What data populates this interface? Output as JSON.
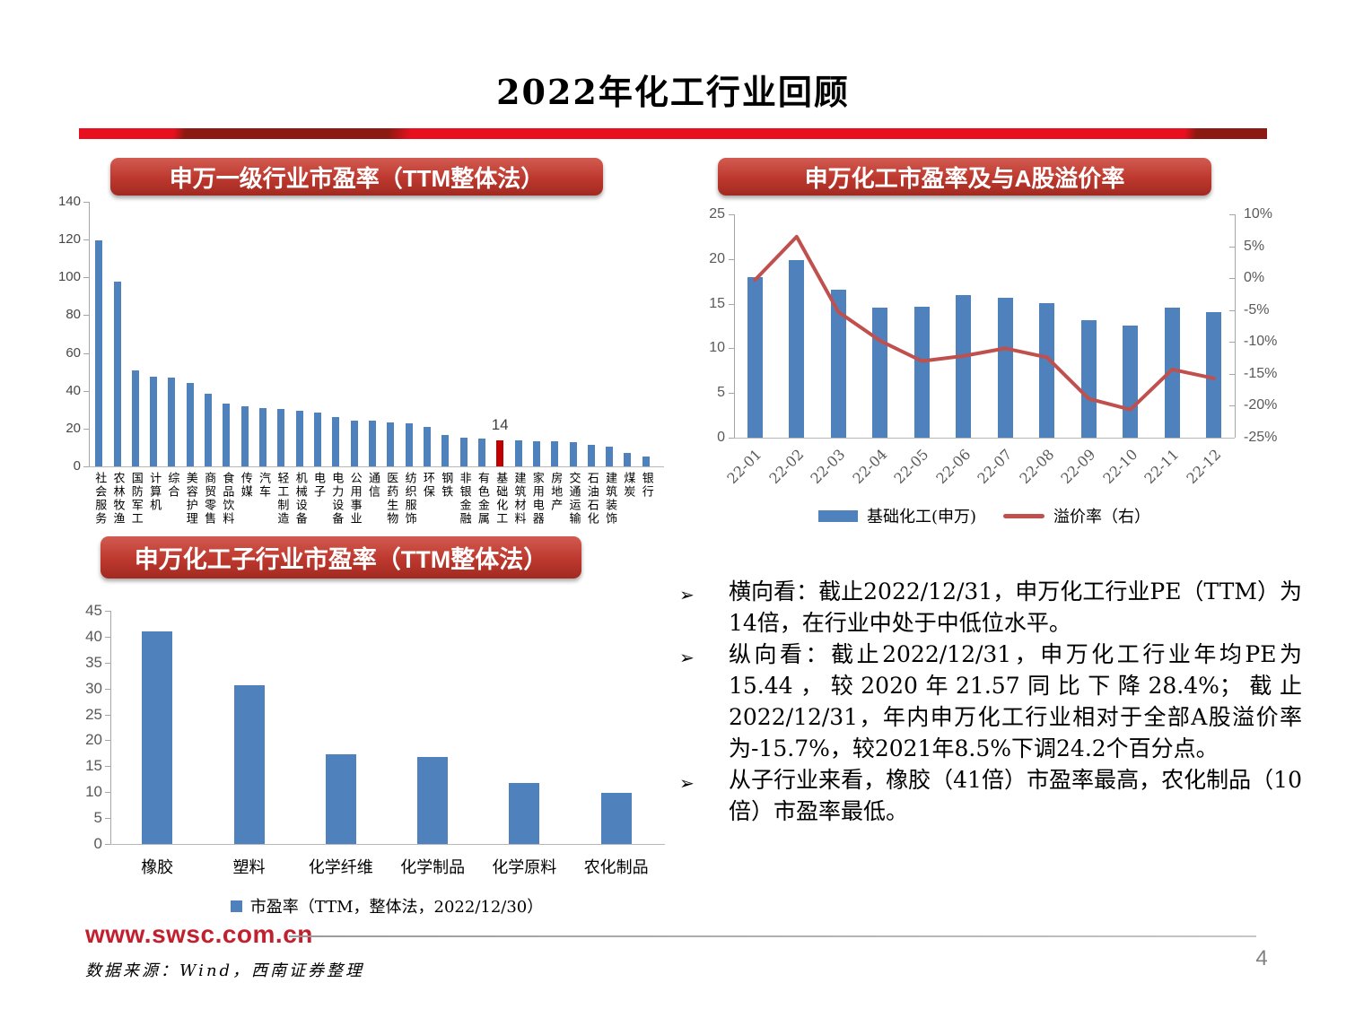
{
  "title": "2022年化工行业回顾",
  "colors": {
    "bar_blue": "#4F81BD",
    "bar_red": "#C00000",
    "line_red": "#C0504D",
    "banner_red": "#BD382E",
    "divider_red": "#E8101E",
    "divider_dark": "#8B1A12",
    "axis_gray": "#A6A6A6",
    "label_gray": "#595959",
    "link_red": "#C2202F"
  },
  "chart_data": [
    {
      "type": "bar",
      "title": "申万一级行业市盈率（TTM整体法）",
      "categories": [
        "社会服务",
        "农林牧渔",
        "国防军工",
        "计算机",
        "综合",
        "美容护理",
        "商贸零售",
        "食品饮料",
        "传媒",
        "汽车",
        "轻工制造",
        "机械设备",
        "电子",
        "电力设备",
        "公用事业",
        "通信",
        "医药生物",
        "纺织服饰",
        "环保",
        "钢铁",
        "非银金融",
        "有色金属",
        "基础化工",
        "建筑材料",
        "家用电器",
        "房地产",
        "交通运输",
        "石油石化",
        "建筑装饰",
        "煤炭",
        "银行"
      ],
      "values": [
        119.6,
        98.0,
        50.8,
        47.6,
        46.9,
        44.0,
        38.6,
        33.4,
        31.9,
        30.9,
        30.2,
        29.6,
        28.7,
        26.2,
        24.4,
        24.1,
        23.5,
        22.9,
        20.7,
        16.4,
        15.4,
        14.7,
        14.0,
        13.8,
        13.5,
        13.1,
        12.7,
        11.6,
        10.3,
        7.3,
        5.3
      ],
      "highlight": {
        "index": 22,
        "category": "基础化工",
        "data_label": "14"
      },
      "ylim": [
        0,
        140
      ],
      "ystep": 20,
      "grid": false,
      "legend_position": "none"
    },
    {
      "type": "bar+line",
      "title": "申万化工市盈率及与A股溢价率",
      "categories": [
        "22-01",
        "22-02",
        "22-03",
        "22-04",
        "22-05",
        "22-06",
        "22-07",
        "22-08",
        "22-09",
        "22-10",
        "22-11",
        "22-12"
      ],
      "series": [
        {
          "name": "基础化工(申万)",
          "type": "bar",
          "axis": "left",
          "values": [
            18.0,
            19.9,
            16.6,
            14.6,
            14.7,
            16.0,
            15.7,
            15.1,
            13.2,
            12.6,
            14.6,
            14.1
          ]
        },
        {
          "name": "溢价率（右）",
          "type": "line",
          "axis": "right",
          "values": [
            -0.3,
            6.5,
            -5.3,
            -9.8,
            -13.0,
            -12.2,
            -11.0,
            -12.4,
            -18.9,
            -20.6,
            -14.3,
            -15.7
          ]
        }
      ],
      "ylim_left": [
        0,
        25
      ],
      "ystep_left": 5,
      "ylim_right": [
        -25,
        10
      ],
      "ystep_right": 5,
      "yformat_right": "%",
      "grid": false,
      "legend_position": "bottom"
    },
    {
      "type": "bar",
      "title": "申万化工子行业市盈率（TTM整体法）",
      "categories": [
        "橡胶",
        "塑料",
        "化学纤维",
        "化学制品",
        "化学原料",
        "农化制品"
      ],
      "values": [
        41.0,
        30.6,
        17.3,
        16.8,
        11.7,
        9.8
      ],
      "ylim": [
        0,
        45
      ],
      "ystep": 5,
      "grid": false,
      "legend": [
        "市盈率（TTM，整体法，2022/12/30）"
      ],
      "legend_position": "bottom"
    }
  ],
  "bullets": [
    "横向看：截止2022/12/31，申万化工行业PE（TTM）为14倍，在行业中处于中低位水平。",
    "纵向看：截止2022/12/31，申万化工行业年均PE为15.44，较2020年21.57同比下降28.4%；截止2022/12/31，年内申万化工行业相对于全部A股溢价率为-15.7%，较2021年8.5%下调24.2个百分点。",
    "从子行业来看，橡胶（41倍）市盈率最高，农化制品（10倍）市盈率最低。"
  ],
  "bullet_marker": "➢",
  "footer": {
    "url": "www.swsc.com.cn",
    "source": "数据来源：Wind，西南证券整理",
    "page": "4"
  }
}
